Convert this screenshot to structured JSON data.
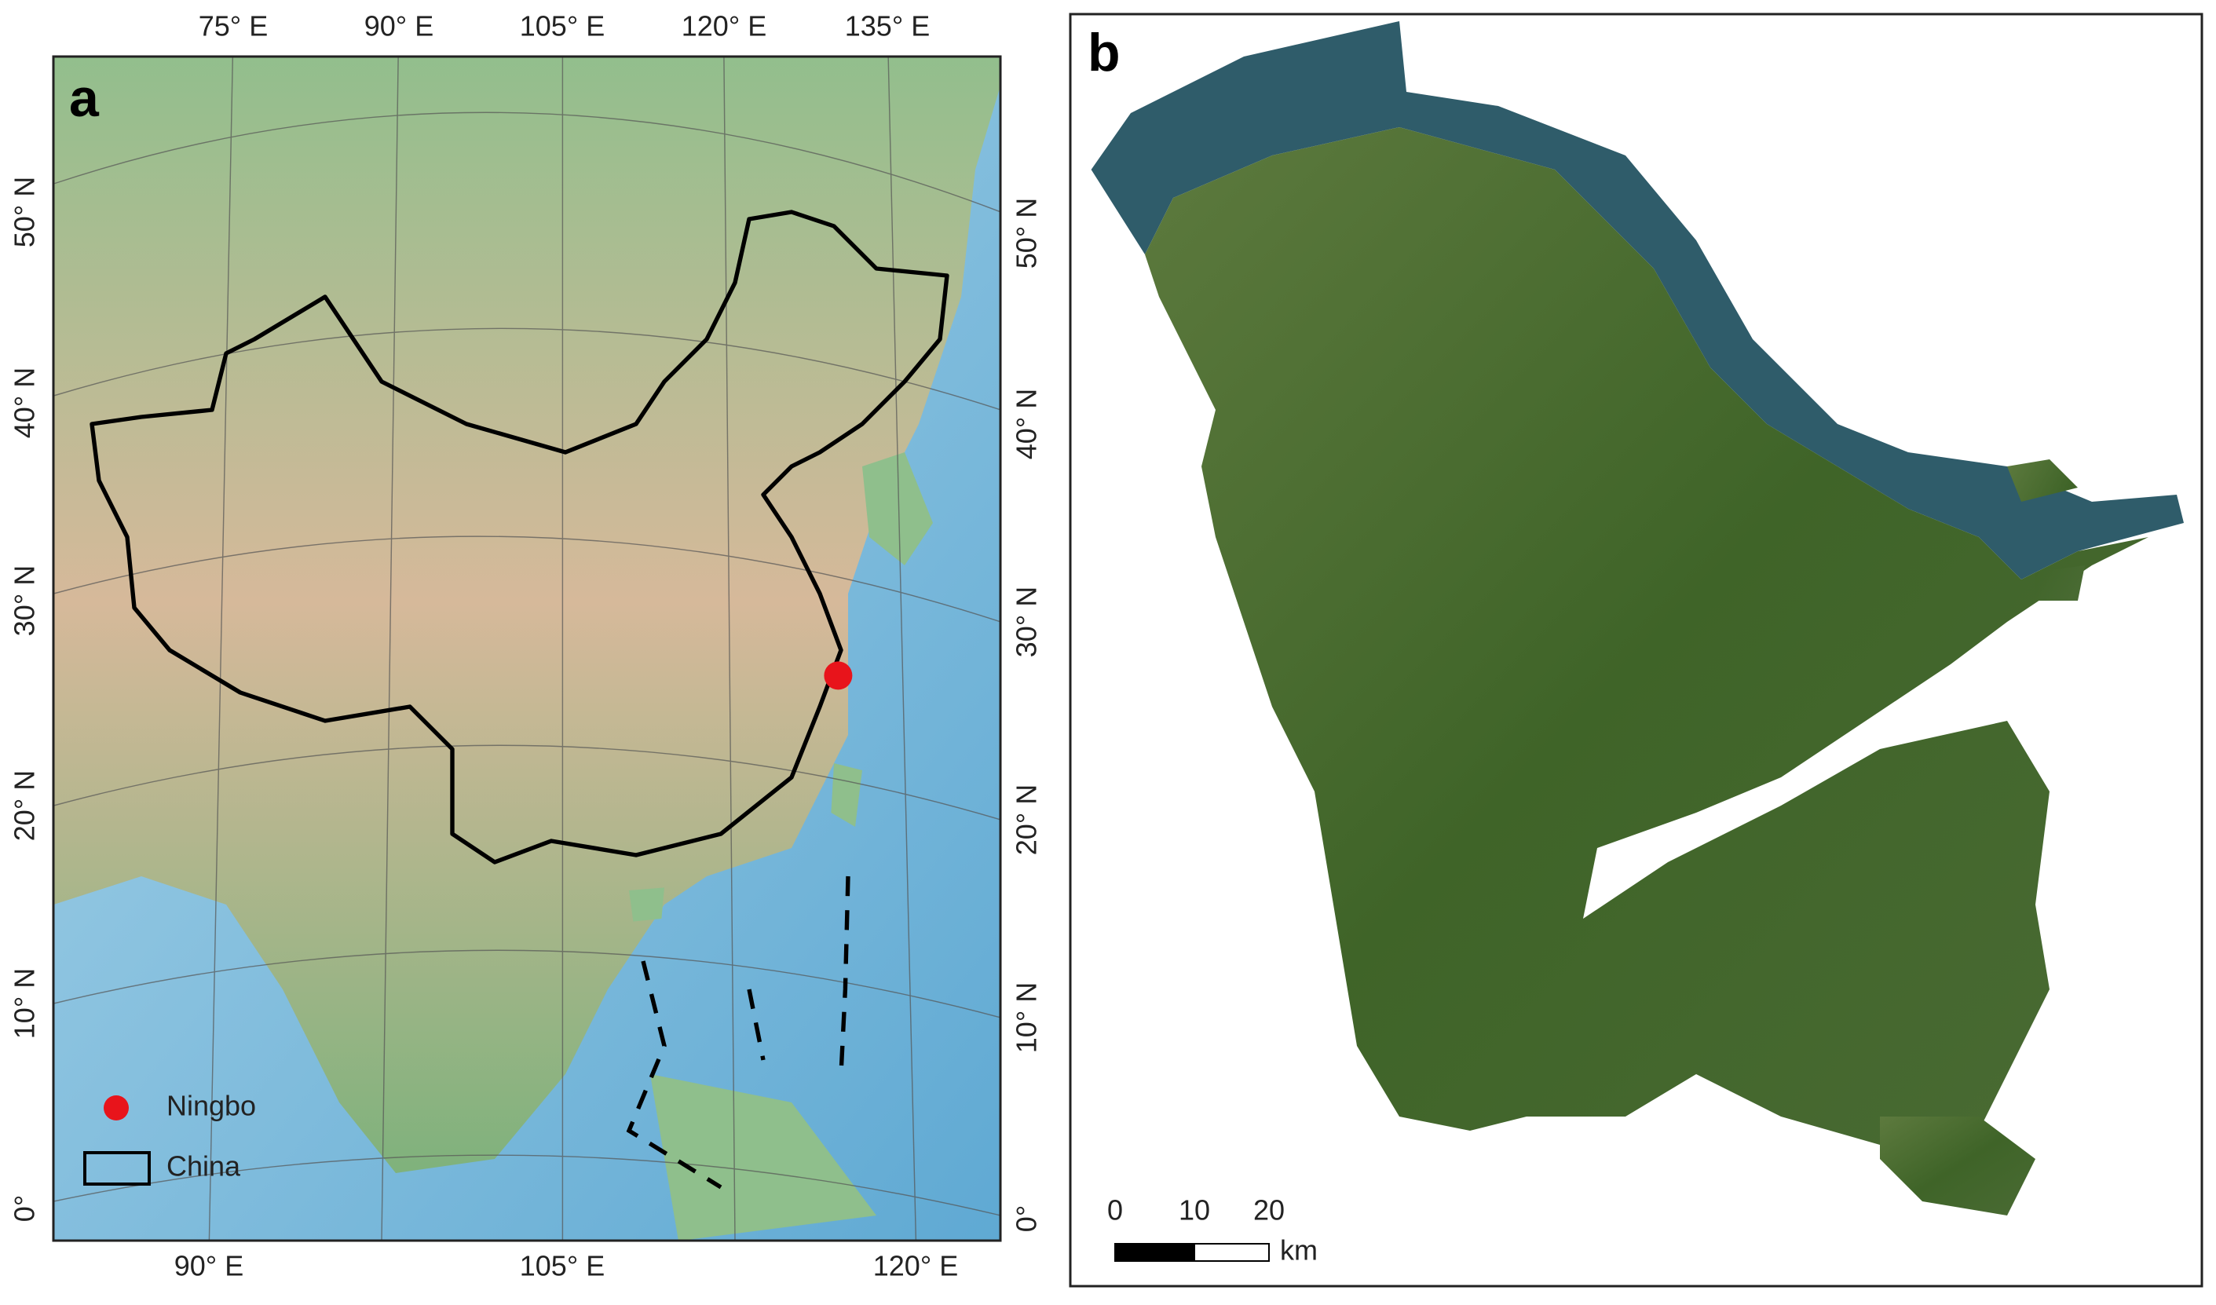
{
  "panel_a": {
    "label": "a",
    "top_longitudes": [
      "75° E",
      "90° E",
      "105° E",
      "120° E",
      "135° E"
    ],
    "bottom_longitudes": [
      "90° E",
      "105° E",
      "120° E"
    ],
    "left_latitudes": [
      "50° N",
      "40° N",
      "30° N",
      "20° N",
      "10° N",
      "0°"
    ],
    "right_latitudes": [
      "50° N",
      "40° N",
      "30° N",
      "20° N",
      "10° N",
      "0°"
    ],
    "legend": [
      {
        "label": "Ningbo"
      },
      {
        "label": "China"
      }
    ]
  },
  "panel_b": {
    "label": "b",
    "scale_bar": {
      "ticks": [
        "0",
        "10",
        "20"
      ],
      "unit": "km"
    }
  }
}
